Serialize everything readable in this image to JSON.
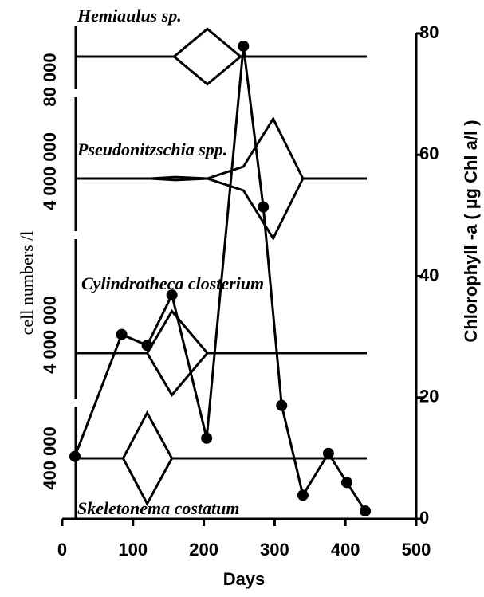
{
  "chart_data": {
    "type": "line",
    "x": [
      18,
      84,
      120,
      155,
      204,
      256,
      284,
      310,
      340,
      376,
      402,
      428
    ],
    "values": [
      10.3,
      30.4,
      28.6,
      36.9,
      13.3,
      77.9,
      51.4,
      18.7,
      3.9,
      10.8,
      6.0,
      1.3
    ],
    "color": "#000000",
    "xlim": [
      0,
      500
    ],
    "xticks": [
      0,
      100,
      200,
      300,
      400,
      500
    ],
    "ylim": [
      0,
      80
    ],
    "yticks": [
      0,
      20,
      40,
      60,
      80
    ],
    "xlabel": "Days",
    "ylabel": "Chlorophyll -a ( µg Chl a/l )",
    "left_label": "cell numbers /l",
    "kites": [
      {
        "name": "Hemiaulus sp.",
        "scale": {
          "value": 80000,
          "label": "80 000"
        },
        "x": [
          19,
          158,
          205,
          252,
          430
        ],
        "values": [
          0,
          0,
          37000,
          0,
          0
        ]
      },
      {
        "name": "Pseudonitzschia spp.",
        "scale": {
          "value": 4000000,
          "label": "4 000 000"
        },
        "x": [
          19,
          125,
          160,
          205,
          256,
          298,
          340,
          430
        ],
        "values": [
          0,
          0,
          100000,
          0,
          800000,
          4000000,
          0,
          0
        ]
      },
      {
        "name": "Cylindrotheca closterium",
        "scale": {
          "value": 4000000,
          "label": "4 000 000"
        },
        "x": [
          19,
          120,
          155,
          205,
          430
        ],
        "values": [
          0,
          0,
          2800000,
          0,
          0
        ]
      },
      {
        "name": "Skeletonema costatum",
        "scale": {
          "value": 400000,
          "label": "400 000"
        },
        "x": [
          19,
          86,
          120,
          155,
          430
        ],
        "values": [
          0,
          0,
          304000,
          0,
          0
        ]
      }
    ]
  }
}
